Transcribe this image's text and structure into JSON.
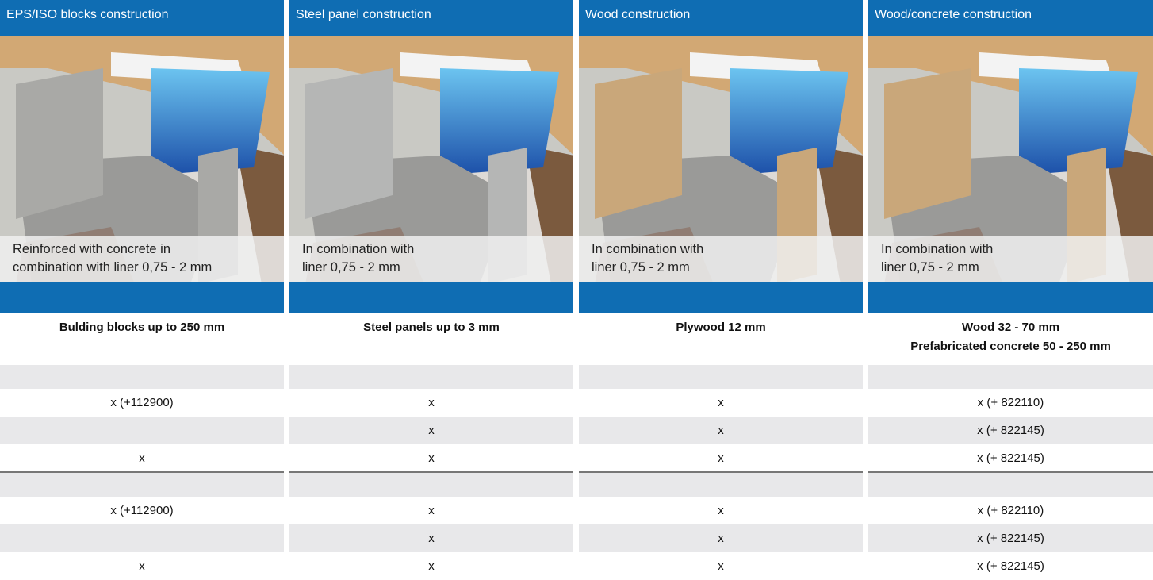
{
  "columns": [
    {
      "title": "EPS/ISO blocks construction",
      "caption": [
        "Reinforced with concrete in",
        "combination with liner 0,75 - 2 mm"
      ],
      "spec": [
        "Bulding blocks up to 250 mm"
      ]
    },
    {
      "title": "Steel panel construction",
      "caption": [
        "In combination with",
        "liner 0,75 - 2 mm"
      ],
      "spec": [
        "Steel panels up to 3 mm"
      ]
    },
    {
      "title": "Wood construction",
      "caption": [
        "In combination with",
        "liner 0,75 - 2 mm"
      ],
      "spec": [
        "Plywood 12 mm"
      ]
    },
    {
      "title": "Wood/concrete construction",
      "caption": [
        "In combination with",
        "liner 0,75 - 2 mm"
      ],
      "spec": [
        "Wood 32 - 70 mm",
        "Prefabricated concrete 50 - 250 mm"
      ]
    }
  ],
  "table": {
    "sections": [
      {
        "rows": [
          [
            "x (+112900)",
            "x",
            "x",
            "x (+ 822110)"
          ],
          [
            null,
            "x",
            "x",
            "x (+ 822145)"
          ],
          [
            "x",
            "x",
            "x",
            "x (+ 822145)"
          ]
        ]
      },
      {
        "rows": [
          [
            "x (+112900)",
            "x",
            "x",
            "x (+ 822110)"
          ],
          [
            null,
            "x",
            "x",
            "x (+ 822145)"
          ],
          [
            "x",
            "x",
            "x",
            "x (+ 822145)"
          ]
        ]
      }
    ]
  }
}
